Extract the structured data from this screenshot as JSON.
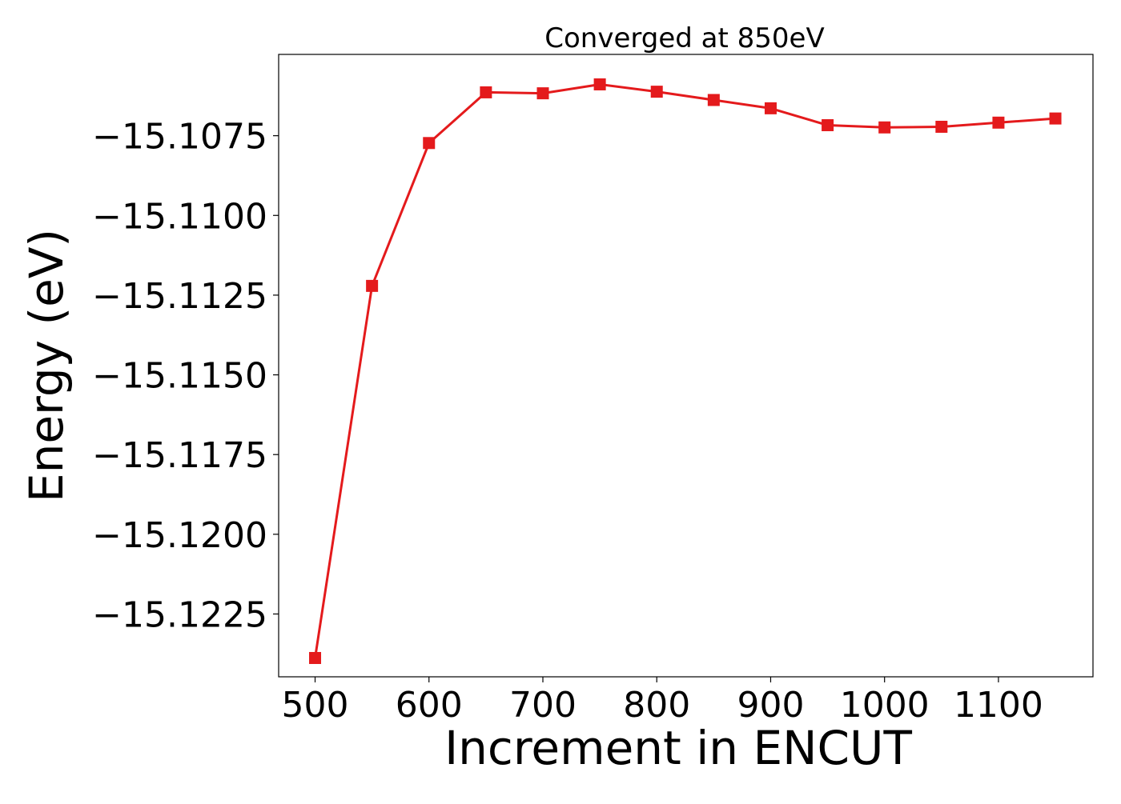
{
  "chart_data": {
    "type": "line",
    "title": "Converged at 850eV",
    "xlabel": "Increment in ENCUT",
    "ylabel": "Energy (eV)",
    "xlim": [
      468,
      1183
    ],
    "ylim": [
      -15.12447,
      -15.10495
    ],
    "x_ticks": [
      500,
      600,
      700,
      800,
      900,
      1000,
      1100
    ],
    "x_tick_labels": [
      "500",
      "600",
      "700",
      "800",
      "900",
      "1000",
      "1100"
    ],
    "y_ticks": [
      -15.1075,
      -15.11,
      -15.1125,
      -15.115,
      -15.1175,
      -15.12,
      -15.1225
    ],
    "y_tick_labels": [
      "−15.1075",
      "−15.1100",
      "−15.1125",
      "−15.1150",
      "−15.1175",
      "−15.1200",
      "−15.1225"
    ],
    "grid": false,
    "legend": "none",
    "series": [
      {
        "color": "#e41a1c",
        "marker": "square",
        "x": [
          500,
          550,
          600,
          650,
          700,
          750,
          800,
          850,
          900,
          950,
          1000,
          1050,
          1100,
          1150
        ],
        "y": [
          -15.12388,
          -15.11221,
          -15.10773,
          -15.10614,
          -15.10617,
          -15.10589,
          -15.10612,
          -15.10638,
          -15.10664,
          -15.10717,
          -15.10724,
          -15.10722,
          -15.10709,
          -15.10696
        ]
      }
    ]
  }
}
